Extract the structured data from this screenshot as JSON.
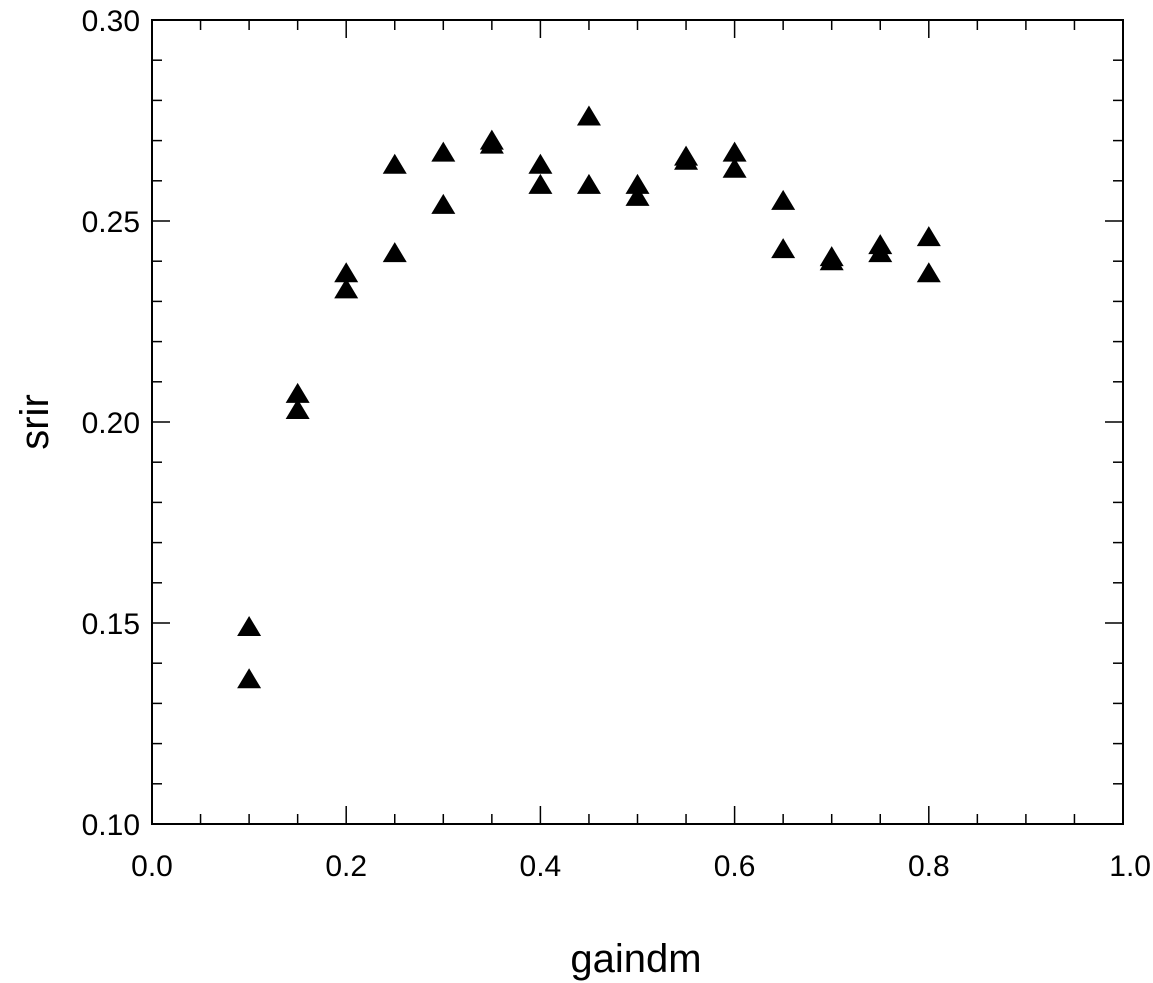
{
  "chart_data": {
    "type": "scatter",
    "title": "",
    "xlabel": "gaindm",
    "ylabel": "srir",
    "xlim": [
      0.0,
      1.0
    ],
    "ylim": [
      0.1,
      0.3
    ],
    "x_ticks": [
      0.0,
      0.2,
      0.4,
      0.6,
      0.8,
      1.0
    ],
    "x_tick_labels": [
      "0.0",
      "0.2",
      "0.4",
      "0.6",
      "0.8",
      "1.0"
    ],
    "y_ticks": [
      0.1,
      0.15,
      0.2,
      0.25,
      0.3
    ],
    "y_tick_labels": [
      "0.10",
      "0.15",
      "0.20",
      "0.25",
      "0.30"
    ],
    "x_minor_step": 0.05,
    "y_minor_step": 0.01,
    "grid": false,
    "legend": "none",
    "marker": "filled-triangle",
    "marker_color": "#000000",
    "series": [
      {
        "x": [
          0.1,
          0.1,
          0.15,
          0.15,
          0.2,
          0.2,
          0.25,
          0.25,
          0.3,
          0.3,
          0.35,
          0.35,
          0.4,
          0.4,
          0.45,
          0.45,
          0.5,
          0.5,
          0.55,
          0.55,
          0.6,
          0.6,
          0.65,
          0.65,
          0.7,
          0.7,
          0.75,
          0.75,
          0.8,
          0.8
        ],
        "y": [
          0.149,
          0.136,
          0.207,
          0.203,
          0.237,
          0.233,
          0.264,
          0.242,
          0.267,
          0.254,
          0.27,
          0.269,
          0.264,
          0.259,
          0.276,
          0.259,
          0.259,
          0.256,
          0.266,
          0.265,
          0.267,
          0.263,
          0.255,
          0.243,
          0.241,
          0.24,
          0.244,
          0.242,
          0.246,
          0.237
        ]
      }
    ]
  }
}
